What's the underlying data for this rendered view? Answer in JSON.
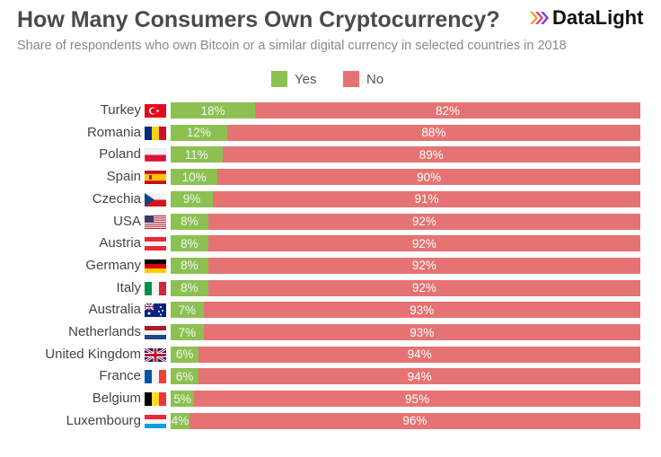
{
  "title": "How Many Consumers Own Cryptocurrency?",
  "subtitle": "Share of respondents who own Bitcoin or a similar digital currency in selected countries in 2018",
  "logo": {
    "text": "DataLight",
    "icon": "datalight-chevrons-icon"
  },
  "colors": {
    "yes": "#8cc152",
    "no": "#e57373"
  },
  "chart_data": {
    "type": "bar",
    "orientation": "horizontal",
    "stacked": true,
    "unit": "%",
    "legend_position": "top-center",
    "categories": [
      "Turkey",
      "Romania",
      "Poland",
      "Spain",
      "Czechia",
      "USA",
      "Austria",
      "Germany",
      "Italy",
      "Australia",
      "Netherlands",
      "United Kingdom",
      "France",
      "Belgium",
      "Luxembourg"
    ],
    "series": [
      {
        "name": "Yes",
        "values": [
          18,
          12,
          11,
          10,
          9,
          8,
          8,
          8,
          8,
          7,
          7,
          6,
          6,
          5,
          4
        ]
      },
      {
        "name": "No",
        "values": [
          82,
          88,
          89,
          90,
          91,
          92,
          92,
          92,
          92,
          93,
          93,
          94,
          94,
          95,
          96
        ]
      }
    ],
    "data_labels": {
      "yes": [
        "18%",
        "12%",
        "11%",
        "10%",
        "9%",
        "8%",
        "8%",
        "8%",
        "8%",
        "7%",
        "7%",
        "6%",
        "6%",
        "5%",
        "4%"
      ],
      "no": [
        "82%",
        "88%",
        "89%",
        "90%",
        "91%",
        "92%",
        "92%",
        "92%",
        "92%",
        "93%",
        "93%",
        "94%",
        "94%",
        "95%",
        "96%"
      ]
    },
    "flags": [
      "turkey-flag-icon",
      "romania-flag-icon",
      "poland-flag-icon",
      "spain-flag-icon",
      "czechia-flag-icon",
      "usa-flag-icon",
      "austria-flag-icon",
      "germany-flag-icon",
      "italy-flag-icon",
      "australia-flag-icon",
      "netherlands-flag-icon",
      "united-kingdom-flag-icon",
      "france-flag-icon",
      "belgium-flag-icon",
      "luxembourg-flag-icon"
    ]
  }
}
